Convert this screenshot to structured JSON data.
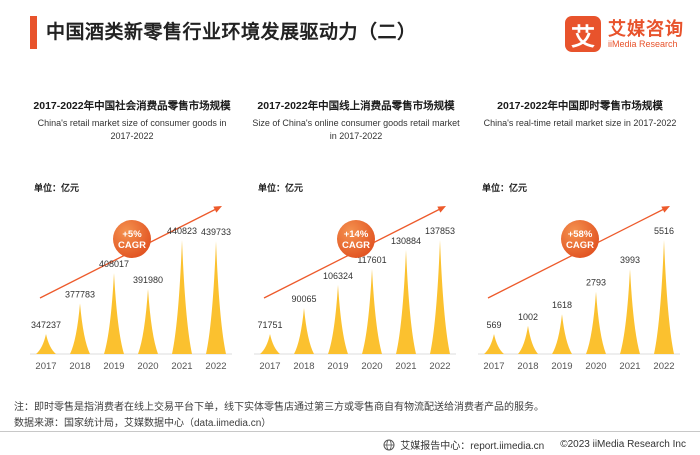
{
  "header": {
    "title": "中国酒类新零售行业环境发展驱动力（二）",
    "logo": {
      "mark": "艾",
      "name_cn": "艾媒咨询",
      "name_en": "iiMedia Research"
    }
  },
  "chart_data": [
    {
      "type": "bar",
      "title": "2017-2022年中国社会消费品零售市场规模",
      "subtitle": "China's retail market size of consumer goods in 2017-2022",
      "unit": "单位：亿元",
      "categories": [
        "2017",
        "2018",
        "2019",
        "2020",
        "2021",
        "2022"
      ],
      "values": [
        347237,
        377783,
        408017,
        391980,
        440823,
        439733
      ],
      "cagr": "+5%",
      "cagr_label": "CAGR",
      "trend": "up",
      "grid": false,
      "ylim": [
        340000,
        445000
      ]
    },
    {
      "type": "bar",
      "title": "2017-2022年中国线上消费品零售市场规模",
      "subtitle": "Size of China's online consumer goods retail market in 2017-2022",
      "unit": "单位：亿元",
      "categories": [
        "2017",
        "2018",
        "2019",
        "2020",
        "2021",
        "2022"
      ],
      "values": [
        71751,
        90065,
        106324,
        117601,
        130884,
        137853
      ],
      "cagr": "+14%",
      "cagr_label": "CAGR",
      "trend": "up",
      "grid": false,
      "ylim": [
        70000,
        140000
      ]
    },
    {
      "type": "bar",
      "title": "2017-2022年中国即时零售市场规模",
      "subtitle": "China's real-time retail market size in 2017-2022",
      "unit": "单位：亿元",
      "categories": [
        "2017",
        "2018",
        "2019",
        "2020",
        "2021",
        "2022"
      ],
      "values": [
        569,
        1002,
        1618,
        2793,
        3993,
        5516
      ],
      "cagr": "+58%",
      "cagr_label": "CAGR",
      "trend": "up",
      "grid": false,
      "ylim": [
        0,
        5600
      ]
    }
  ],
  "notes": {
    "note": "注：即时零售是指消费者在线上交易平台下单，线下实体零售店通过第三方或零售商自有物流配送给消费者产品的服务。",
    "source": "数据来源：国家统计局，艾媒数据中心（data.iimedia.cn）"
  },
  "footer": {
    "report_center": "艾媒报告中心：report.iimedia.cn",
    "copyright": "©2023  iiMedia Research Inc"
  },
  "colors": {
    "accent": "#E8532C",
    "bar": "#FBC12F",
    "trend": "#ED5A2B",
    "badge_light": "#F4924F",
    "badge_dark": "#E04E1E",
    "baseline": "#dddddd"
  }
}
